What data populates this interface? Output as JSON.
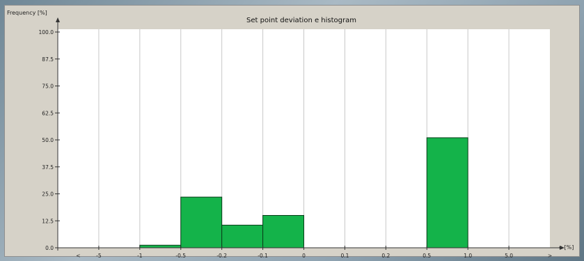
{
  "chart_data": {
    "type": "bar",
    "title": "Set point deviation e histogram",
    "ylabel": "Frequency [%]",
    "xlabel": "e [%]",
    "ylim": [
      0,
      100
    ],
    "y_ticks": [
      "0.0",
      "12.5",
      "25.0",
      "37.5",
      "50.0",
      "62.5",
      "75.0",
      "87.5",
      "100.0"
    ],
    "x_boundaries": [
      "<",
      "-5",
      "-1",
      "-0.5",
      "-0.2",
      "-0.1",
      "0",
      "0.1",
      "0.2",
      "0.5",
      "1.0",
      "5.0",
      ">"
    ],
    "categories": [
      "< -5",
      "-5 .. -1",
      "-1 .. -0.5",
      "-0.5 .. -0.2",
      "-0.2 .. -0.1",
      "-0.1 .. 0",
      "0 .. 0.1",
      "0.1 .. 0.2",
      "0.2 .. 0.5",
      "0.5 .. 1.0",
      "1.0 .. 5.0",
      "5.0 .. >"
    ],
    "values": [
      0,
      0,
      1.2,
      23.5,
      10.5,
      15,
      0,
      0,
      0,
      51,
      0,
      0
    ],
    "grid": true,
    "colors": {
      "bar": "#14b34a",
      "bar_outline": "#0a3d1a",
      "plot_bg": "#ffffff",
      "grid": "#c8c8c8"
    }
  }
}
